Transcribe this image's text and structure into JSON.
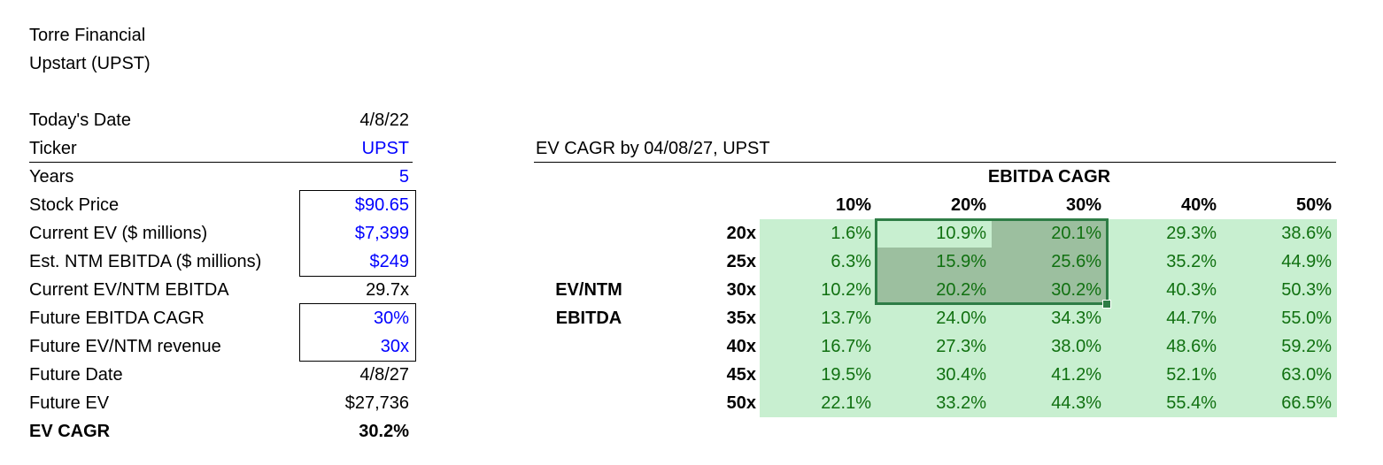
{
  "header": {
    "company": "Torre Financial",
    "stock": "Upstart (UPST)"
  },
  "inputs": [
    {
      "label": "Today's Date",
      "value": "4/8/22",
      "style": "black"
    },
    {
      "label": "Ticker",
      "value": "UPST",
      "style": "blue"
    },
    {
      "label": "Years",
      "value": "5",
      "style": "blue"
    },
    {
      "label": "Stock Price",
      "value": "$90.65",
      "style": "blue"
    },
    {
      "label": "Current EV ($ millions)",
      "value": "$7,399",
      "style": "blue"
    },
    {
      "label": "Est. NTM EBITDA ($ millions)",
      "value": "$249",
      "style": "blue"
    },
    {
      "label": "Current EV/NTM EBITDA",
      "value": "29.7x",
      "style": "black"
    },
    {
      "label": "Future EBITDA CAGR",
      "value": "30%",
      "style": "blue"
    },
    {
      "label": "Future EV/NTM revenue",
      "value": "30x",
      "style": "blue"
    },
    {
      "label": "Future Date",
      "value": "4/8/27",
      "style": "black"
    },
    {
      "label": "Future EV",
      "value": "$27,736",
      "style": "black"
    },
    {
      "label": "EV CAGR",
      "value": "30.2%",
      "style": "bold"
    }
  ],
  "table": {
    "title": "EV CAGR by 04/08/27, UPST",
    "col_header": "EBITDA CAGR",
    "row_header_line1": "EV/NTM",
    "row_header_line2": "EBITDA",
    "columns": [
      "10%",
      "20%",
      "30%",
      "40%",
      "50%"
    ],
    "rows": [
      {
        "label": "20x",
        "values": [
          "1.6%",
          "10.9%",
          "20.1%",
          "29.3%",
          "38.6%"
        ]
      },
      {
        "label": "25x",
        "values": [
          "6.3%",
          "15.9%",
          "25.6%",
          "35.2%",
          "44.9%"
        ]
      },
      {
        "label": "30x",
        "values": [
          "10.2%",
          "20.2%",
          "30.2%",
          "40.3%",
          "50.3%"
        ]
      },
      {
        "label": "35x",
        "values": [
          "13.7%",
          "24.0%",
          "34.3%",
          "44.7%",
          "55.0%"
        ]
      },
      {
        "label": "40x",
        "values": [
          "16.7%",
          "27.3%",
          "38.0%",
          "48.6%",
          "59.2%"
        ]
      },
      {
        "label": "45x",
        "values": [
          "19.5%",
          "30.4%",
          "41.2%",
          "52.1%",
          "63.0%"
        ]
      },
      {
        "label": "50x",
        "values": [
          "22.1%",
          "33.2%",
          "44.3%",
          "55.4%",
          "66.5%"
        ]
      }
    ]
  },
  "colors": {
    "input_blue": "#0000ff",
    "cell_green_text": "#107010",
    "cell_light_fill": "#c8efd0",
    "cell_selected_fill": "#9cbf9f",
    "selection_border": "#2e7d46"
  }
}
